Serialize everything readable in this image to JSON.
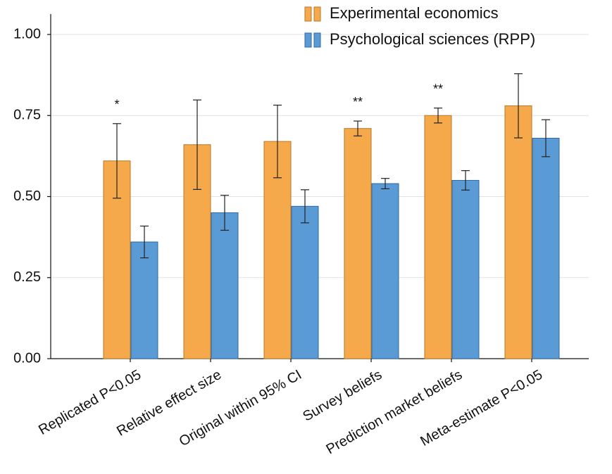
{
  "chart_data": {
    "type": "grouped_bar_errorbar",
    "categories": [
      "Replicated P<0.05",
      "Relative effect size",
      "Original within 95% CI",
      "Survey beliefs",
      "Prediction market beliefs",
      "Meta-estimate P<0.05"
    ],
    "series": [
      {
        "name": "Experimental economics",
        "color": "#f5a94a",
        "edge": "#b8782a",
        "values": [
          0.61,
          0.66,
          0.67,
          0.71,
          0.75,
          0.78
        ],
        "errors": [
          0.115,
          0.138,
          0.112,
          0.023,
          0.023,
          0.099
        ]
      },
      {
        "name": "Psychological sciences (RPP)",
        "color": "#5b9bd5",
        "edge": "#2f6aa3",
        "values": [
          0.36,
          0.45,
          0.47,
          0.54,
          0.55,
          0.68
        ],
        "errors": [
          0.049,
          0.054,
          0.051,
          0.016,
          0.03,
          0.057
        ]
      }
    ],
    "significance": [
      "*",
      null,
      null,
      "**",
      "**",
      null
    ],
    "ylim": [
      0,
      1.05
    ],
    "yticks": [
      {
        "value": 0,
        "label": "0.00"
      },
      {
        "value": 0.25,
        "label": "0.25"
      },
      {
        "value": 0.5,
        "label": "0.50"
      },
      {
        "value": 0.75,
        "label": "0.75"
      },
      {
        "value": 1,
        "label": "1.00"
      }
    ],
    "grid": true,
    "legend": "top-right"
  }
}
